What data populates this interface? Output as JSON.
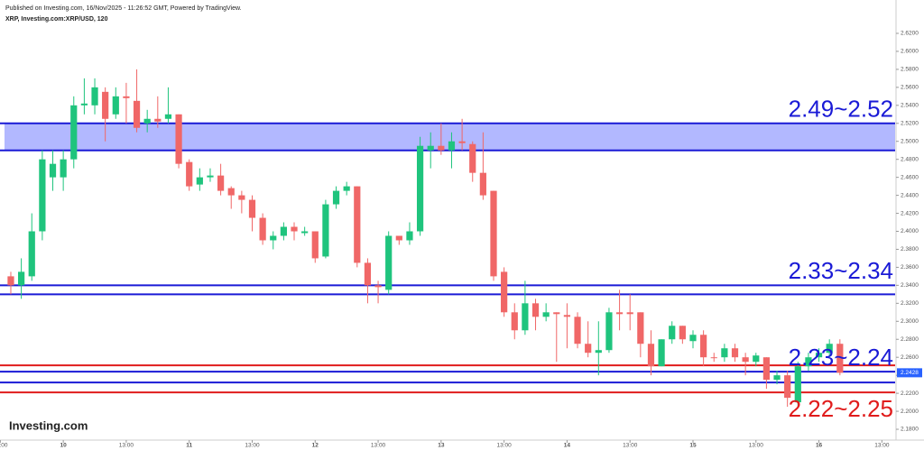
{
  "header": {
    "published": "Published on Investing.com, 16/Nov/2025 - 11:26:52 GMT, Powered by TradingView.",
    "symbol": "XRP, Investing.com:XRP/USD, 120"
  },
  "logo": "Investing.com",
  "chart_data": {
    "type": "candlestick",
    "up_color": "#1fc47d",
    "down_color": "#f06767",
    "open": [
      2.35,
      2.34,
      2.35,
      2.4,
      2.46,
      2.46,
      2.48,
      2.54,
      2.54,
      2.555,
      2.53,
      2.55,
      2.545,
      2.52,
      2.525,
      2.525,
      2.53,
      2.477,
      2.452,
      2.46,
      2.462,
      2.448,
      2.44,
      2.435,
      2.415,
      2.39,
      2.395,
      2.405,
      2.398,
      2.4,
      2.372,
      2.43,
      2.445,
      2.45,
      2.365,
      2.34,
      2.335,
      2.395,
      2.39,
      2.4,
      2.49,
      2.495,
      2.49,
      2.5,
      2.497,
      2.465,
      2.445,
      2.355,
      2.31,
      2.29,
      2.32,
      2.305,
      2.31,
      2.307,
      2.305,
      2.275,
      2.265,
      2.268,
      2.31,
      2.31,
      2.31,
      2.275,
      2.25,
      2.28,
      2.295,
      2.278,
      2.285,
      2.26,
      2.26,
      2.27,
      2.26,
      2.255,
      2.26,
      2.235,
      2.24,
      2.21,
      2.25,
      2.26,
      2.265,
      2.275
    ],
    "high": [
      2.355,
      2.37,
      2.42,
      2.49,
      2.49,
      2.49,
      2.55,
      2.57,
      2.57,
      2.56,
      2.56,
      2.565,
      2.58,
      2.535,
      2.55,
      2.56,
      2.53,
      2.48,
      2.47,
      2.47,
      2.475,
      2.45,
      2.445,
      2.44,
      2.42,
      2.4,
      2.41,
      2.41,
      2.405,
      2.4,
      2.435,
      2.45,
      2.455,
      2.45,
      2.37,
      2.345,
      2.4,
      2.395,
      2.41,
      2.505,
      2.51,
      2.52,
      2.51,
      2.525,
      2.5,
      2.51,
      2.445,
      2.36,
      2.32,
      2.345,
      2.325,
      2.32,
      2.31,
      2.32,
      2.31,
      2.3,
      2.3,
      2.315,
      2.335,
      2.33,
      2.31,
      2.29,
      2.28,
      2.3,
      2.295,
      2.29,
      2.29,
      2.265,
      2.275,
      2.275,
      2.265,
      2.265,
      2.26,
      2.245,
      2.245,
      2.255,
      2.265,
      2.27,
      2.28,
      2.28
    ],
    "low": [
      2.33,
      2.325,
      2.345,
      2.39,
      2.445,
      2.445,
      2.47,
      2.53,
      2.53,
      2.5,
      2.525,
      2.52,
      2.51,
      2.51,
      2.515,
      2.52,
      2.47,
      2.445,
      2.445,
      2.455,
      2.44,
      2.425,
      2.42,
      2.4,
      2.385,
      2.38,
      2.39,
      2.39,
      2.395,
      2.365,
      2.37,
      2.425,
      2.44,
      2.36,
      2.32,
      2.32,
      2.33,
      2.385,
      2.385,
      2.395,
      2.47,
      2.485,
      2.47,
      2.49,
      2.455,
      2.435,
      2.345,
      2.305,
      2.28,
      2.285,
      2.29,
      2.3,
      2.255,
      2.27,
      2.27,
      2.26,
      2.24,
      2.265,
      2.29,
      2.29,
      2.26,
      2.24,
      2.25,
      2.275,
      2.275,
      2.27,
      2.25,
      2.255,
      2.255,
      2.255,
      2.24,
      2.25,
      2.225,
      2.23,
      2.205,
      2.205,
      2.245,
      2.255,
      2.26,
      2.24
    ],
    "close": [
      2.34,
      2.355,
      2.4,
      2.48,
      2.475,
      2.48,
      2.54,
      2.542,
      2.56,
      2.525,
      2.55,
      2.548,
      2.515,
      2.525,
      2.522,
      2.53,
      2.475,
      2.45,
      2.46,
      2.462,
      2.445,
      2.44,
      2.435,
      2.415,
      2.39,
      2.395,
      2.405,
      2.4,
      2.4,
      2.37,
      2.43,
      2.445,
      2.45,
      2.365,
      2.34,
      2.338,
      2.395,
      2.39,
      2.4,
      2.495,
      2.495,
      2.49,
      2.5,
      2.498,
      2.465,
      2.44,
      2.35,
      2.31,
      2.29,
      2.32,
      2.305,
      2.31,
      2.308,
      2.305,
      2.275,
      2.265,
      2.268,
      2.31,
      2.308,
      2.308,
      2.275,
      2.25,
      2.28,
      2.295,
      2.28,
      2.285,
      2.26,
      2.259,
      2.27,
      2.26,
      2.255,
      2.262,
      2.235,
      2.24,
      2.215,
      2.25,
      2.26,
      2.265,
      2.275,
      2.2428
    ],
    "xlim": [
      -1.03,
      84.26
    ],
    "xticks": [
      {
        "value": -1,
        "label": "13:00"
      },
      {
        "value": 5,
        "label": "10"
      },
      {
        "value": 11,
        "label": "13:00"
      },
      {
        "value": 17,
        "label": "11"
      },
      {
        "value": 23,
        "label": "13:00"
      },
      {
        "value": 29,
        "label": "12"
      },
      {
        "value": 35,
        "label": "13:00"
      },
      {
        "value": 41,
        "label": "13"
      },
      {
        "value": 47,
        "label": "13:00"
      },
      {
        "value": 53,
        "label": "14"
      },
      {
        "value": 59,
        "label": "13:00"
      },
      {
        "value": 65,
        "label": "15"
      },
      {
        "value": 71,
        "label": "13:00"
      },
      {
        "value": 77,
        "label": "16"
      },
      {
        "value": 83,
        "label": "13:00"
      }
    ],
    "ylim": [
      2.168,
      2.627
    ],
    "yticks": [
      {
        "value": 2.18,
        "label": "2.1800"
      },
      {
        "value": 2.2,
        "label": "2.2000"
      },
      {
        "value": 2.22,
        "label": "2.2200"
      },
      {
        "value": 2.24,
        "label": "2.2400"
      },
      {
        "value": 2.26,
        "label": "2.2600"
      },
      {
        "value": 2.28,
        "label": "2.2800"
      },
      {
        "value": 2.3,
        "label": "2.3000"
      },
      {
        "value": 2.32,
        "label": "2.3200"
      },
      {
        "value": 2.34,
        "label": "2.3400"
      },
      {
        "value": 2.36,
        "label": "2.3600"
      },
      {
        "value": 2.38,
        "label": "2.3800"
      },
      {
        "value": 2.4,
        "label": "2.4000"
      },
      {
        "value": 2.42,
        "label": "2.4200"
      },
      {
        "value": 2.44,
        "label": "2.4400"
      },
      {
        "value": 2.46,
        "label": "2.4600"
      },
      {
        "value": 2.48,
        "label": "2.4800"
      },
      {
        "value": 2.5,
        "label": "2.5000"
      },
      {
        "value": 2.52,
        "label": "2.5200"
      },
      {
        "value": 2.54,
        "label": "2.5400"
      },
      {
        "value": 2.56,
        "label": "2.5600"
      },
      {
        "value": 2.58,
        "label": "2.5800"
      },
      {
        "value": 2.6,
        "label": "2.6000"
      },
      {
        "value": 2.62,
        "label": "2.6200"
      }
    ],
    "last_price": 2.2428,
    "last_price_color": "#2962ff",
    "levels": [
      {
        "label": "2.49~2.52",
        "values": [
          2.49,
          2.52
        ],
        "color": "#1a1ad6",
        "fill": "#aab0ff"
      },
      {
        "label": "2.33~2.34",
        "values": [
          2.33,
          2.34
        ],
        "color": "#1a1ad6"
      },
      {
        "label": "2.23~2.24",
        "values": [
          2.232,
          2.244
        ],
        "color": "#1a1ad6"
      },
      {
        "label": "2.22~2.25",
        "values": [
          2.221,
          2.251
        ],
        "color": "#e01b1b"
      }
    ]
  }
}
